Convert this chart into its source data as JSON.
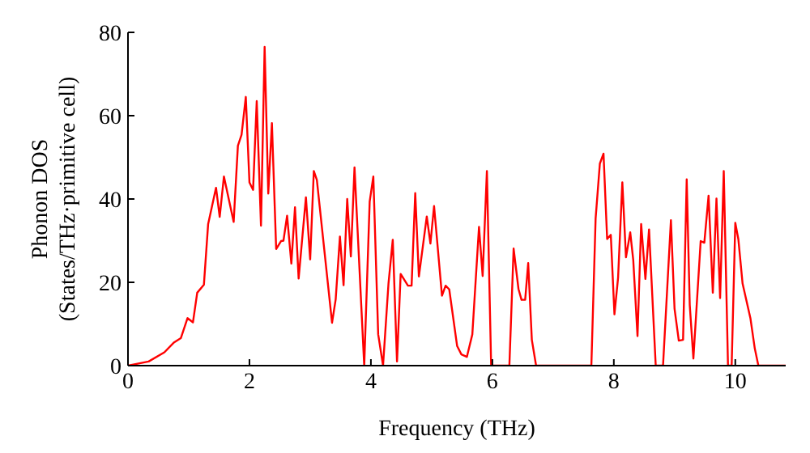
{
  "chart_data": {
    "type": "line",
    "xlabel": "Frequency (THz)",
    "ylabel": "Phonon DOS\n(States/THz·primitive cell)",
    "x": [
      0,
      0.34,
      0.6,
      0.76,
      0.87,
      0.98,
      1.07,
      1.14,
      1.25,
      1.32,
      1.45,
      1.51,
      1.58,
      1.74,
      1.81,
      1.87,
      1.94,
      2.0,
      2.06,
      2.12,
      2.19,
      2.25,
      2.31,
      2.37,
      2.44,
      2.52,
      2.56,
      2.62,
      2.69,
      2.75,
      2.81,
      2.93,
      3.0,
      3.06,
      3.11,
      3.36,
      3.42,
      3.49,
      3.55,
      3.61,
      3.67,
      3.73,
      3.89,
      3.98,
      4.04,
      4.12,
      4.2,
      4.29,
      4.36,
      4.43,
      4.49,
      4.61,
      4.67,
      4.73,
      4.79,
      4.92,
      4.98,
      5.04,
      5.17,
      5.23,
      5.29,
      5.42,
      5.49,
      5.58,
      5.67,
      5.78,
      5.84,
      5.91,
      5.98,
      6.28,
      6.35,
      6.43,
      6.48,
      6.54,
      6.59,
      6.65,
      6.72,
      7.63,
      7.7,
      7.77,
      7.83,
      7.89,
      7.95,
      8.01,
      8.07,
      8.14,
      8.2,
      8.27,
      8.32,
      8.39,
      8.45,
      8.52,
      8.58,
      8.69,
      8.81,
      8.94,
      9.0,
      9.07,
      9.14,
      9.2,
      9.25,
      9.31,
      9.43,
      9.49,
      9.56,
      9.63,
      9.69,
      9.75,
      9.81,
      9.88,
      9.94,
      10.0,
      10.05,
      10.12,
      10.25,
      10.32,
      10.38,
      10.83
    ],
    "series": [
      {
        "color": "#ff0000",
        "values": [
          0,
          1.0,
          3.2,
          5.6,
          6.6,
          11.4,
          10.4,
          17.5,
          19.4,
          34,
          42.7,
          35.7,
          45.4,
          34.5,
          52.8,
          55.4,
          64.5,
          44,
          42.2,
          63.5,
          33.6,
          76.5,
          41.3,
          58.2,
          28,
          29.9,
          30,
          36,
          24.5,
          38,
          20.9,
          40.4,
          25.5,
          46.7,
          44.6,
          10.3,
          15.9,
          31,
          19.3,
          40,
          26.2,
          47.6,
          0,
          39.4,
          45.4,
          7.5,
          0,
          19.8,
          30.2,
          1.0,
          22,
          19.2,
          19.2,
          41.4,
          21.4,
          35.8,
          29.3,
          38.3,
          16.8,
          19.2,
          18.3,
          4.7,
          2.7,
          2.1,
          7.5,
          33.3,
          21.5,
          46.7,
          0,
          0,
          28.1,
          18.4,
          15.8,
          15.8,
          24.6,
          6.2,
          0,
          0,
          35.3,
          48.5,
          50.9,
          30.4,
          31.4,
          12.3,
          21.1,
          44,
          26,
          32,
          25.3,
          7.1,
          34,
          20.8,
          32.7,
          0,
          0,
          34.9,
          13.6,
          6,
          6.2,
          44.7,
          14.6,
          1.7,
          29.9,
          29.5,
          40.8,
          17.5,
          40.1,
          16.2,
          46.7,
          0,
          0,
          34.3,
          30.4,
          19.7,
          11.3,
          4.2,
          0,
          0
        ]
      }
    ],
    "xlim": [
      0,
      10.83
    ],
    "xticks": [
      0,
      2,
      4,
      6,
      8,
      10
    ],
    "ylim": [
      0,
      80
    ],
    "yticks": [
      0,
      20,
      40,
      60,
      80
    ],
    "marker": "none",
    "line_style": "solid"
  }
}
